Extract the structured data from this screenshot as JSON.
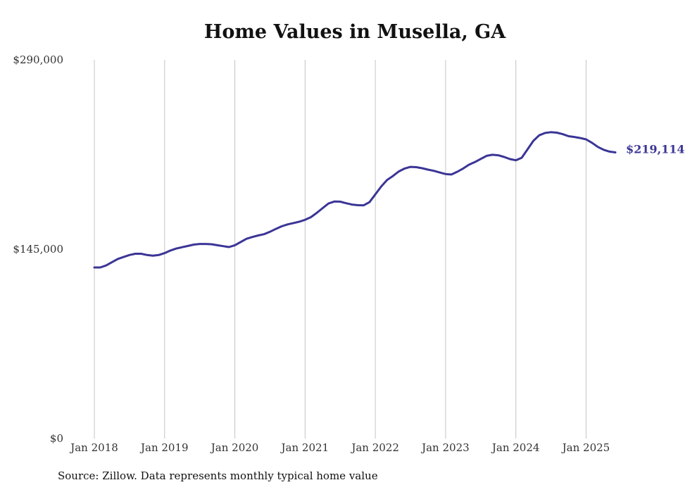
{
  "chart_data": {
    "type": "line",
    "title": "Home Values in Musella, GA",
    "xlabel": "",
    "ylabel": "",
    "ylim": [
      0,
      290000
    ],
    "y_ticks": [
      "$0",
      "$145,000",
      "$290,000"
    ],
    "y_tick_values": [
      0,
      145000,
      290000
    ],
    "x_range": [
      "2018-01",
      "2025-07"
    ],
    "x_ticks": [
      "Jan 2018",
      "Jan 2019",
      "Jan 2020",
      "Jan 2021",
      "Jan 2022",
      "Jan 2023",
      "Jan 2024",
      "Jan 2025"
    ],
    "grid": "vertical",
    "series": [
      {
        "color": "#3b3596",
        "end_label": "$219,114",
        "points": [
          [
            "2018-01",
            131000
          ],
          [
            "2018-02",
            131000
          ],
          [
            "2018-03",
            132500
          ],
          [
            "2018-04",
            135000
          ],
          [
            "2018-05",
            137500
          ],
          [
            "2018-06",
            139000
          ],
          [
            "2018-07",
            140500
          ],
          [
            "2018-08",
            141500
          ],
          [
            "2018-09",
            141500
          ],
          [
            "2018-10",
            140500
          ],
          [
            "2018-11",
            140000
          ],
          [
            "2018-12",
            140500
          ],
          [
            "2019-01",
            142000
          ],
          [
            "2019-02",
            144000
          ],
          [
            "2019-03",
            145500
          ],
          [
            "2019-04",
            146500
          ],
          [
            "2019-05",
            147500
          ],
          [
            "2019-06",
            148500
          ],
          [
            "2019-07",
            149000
          ],
          [
            "2019-08",
            149000
          ],
          [
            "2019-09",
            148800
          ],
          [
            "2019-10",
            148000
          ],
          [
            "2019-11",
            147300
          ],
          [
            "2019-12",
            146600
          ],
          [
            "2020-01",
            148000
          ],
          [
            "2020-02",
            150500
          ],
          [
            "2020-03",
            153000
          ],
          [
            "2020-04",
            154300
          ],
          [
            "2020-05",
            155500
          ],
          [
            "2020-06",
            156500
          ],
          [
            "2020-07",
            158300
          ],
          [
            "2020-08",
            160500
          ],
          [
            "2020-09",
            162500
          ],
          [
            "2020-10",
            164000
          ],
          [
            "2020-11",
            165000
          ],
          [
            "2020-12",
            166000
          ],
          [
            "2021-01",
            167500
          ],
          [
            "2021-02",
            169500
          ],
          [
            "2021-03",
            172800
          ],
          [
            "2021-04",
            176500
          ],
          [
            "2021-05",
            180000
          ],
          [
            "2021-06",
            181500
          ],
          [
            "2021-07",
            181400
          ],
          [
            "2021-08",
            180200
          ],
          [
            "2021-09",
            179200
          ],
          [
            "2021-10",
            178700
          ],
          [
            "2021-11",
            178600
          ],
          [
            "2021-12",
            181000
          ],
          [
            "2022-01",
            187000
          ],
          [
            "2022-02",
            193000
          ],
          [
            "2022-03",
            198000
          ],
          [
            "2022-04",
            201000
          ],
          [
            "2022-05",
            204500
          ],
          [
            "2022-06",
            206800
          ],
          [
            "2022-07",
            208000
          ],
          [
            "2022-08",
            207800
          ],
          [
            "2022-09",
            207000
          ],
          [
            "2022-10",
            205900
          ],
          [
            "2022-11",
            205000
          ],
          [
            "2022-12",
            203700
          ],
          [
            "2023-01",
            202500
          ],
          [
            "2023-02",
            202200
          ],
          [
            "2023-03",
            204300
          ],
          [
            "2023-04",
            206800
          ],
          [
            "2023-05",
            209700
          ],
          [
            "2023-06",
            211700
          ],
          [
            "2023-07",
            214100
          ],
          [
            "2023-08",
            216500
          ],
          [
            "2023-09",
            217300
          ],
          [
            "2023-10",
            216900
          ],
          [
            "2023-11",
            215600
          ],
          [
            "2023-12",
            214000
          ],
          [
            "2024-01",
            213100
          ],
          [
            "2024-02",
            215000
          ],
          [
            "2024-03",
            221500
          ],
          [
            "2024-04",
            228000
          ],
          [
            "2024-05",
            232200
          ],
          [
            "2024-06",
            234000
          ],
          [
            "2024-07",
            234600
          ],
          [
            "2024-08",
            234200
          ],
          [
            "2024-09",
            233100
          ],
          [
            "2024-10",
            231500
          ],
          [
            "2024-11",
            230900
          ],
          [
            "2024-12",
            230100
          ],
          [
            "2025-01",
            229100
          ],
          [
            "2025-02",
            226500
          ],
          [
            "2025-03",
            223300
          ],
          [
            "2025-04",
            221100
          ],
          [
            "2025-05",
            219700
          ],
          [
            "2025-06",
            219114
          ]
        ]
      }
    ]
  },
  "source": "Source: Zillow. Data represents monthly typical home value"
}
